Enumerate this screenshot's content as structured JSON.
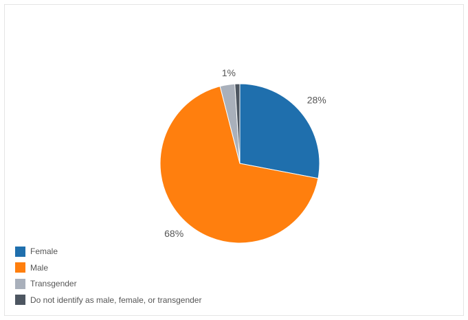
{
  "chart_data": {
    "type": "pie",
    "title": "",
    "slices": [
      {
        "name": "Female",
        "value": 28,
        "label": "28%",
        "color": "#1f6fad"
      },
      {
        "name": "Male",
        "value": 68,
        "label": "68%",
        "color": "#ff7f0e"
      },
      {
        "name": "Transgender",
        "value": 3,
        "label": "",
        "color": "#a9b0bb"
      },
      {
        "name": "Do not identify as male, female, or transgender",
        "value": 1,
        "label": "1%",
        "color": "#4d5661"
      }
    ],
    "legend_position": "bottom-left"
  }
}
